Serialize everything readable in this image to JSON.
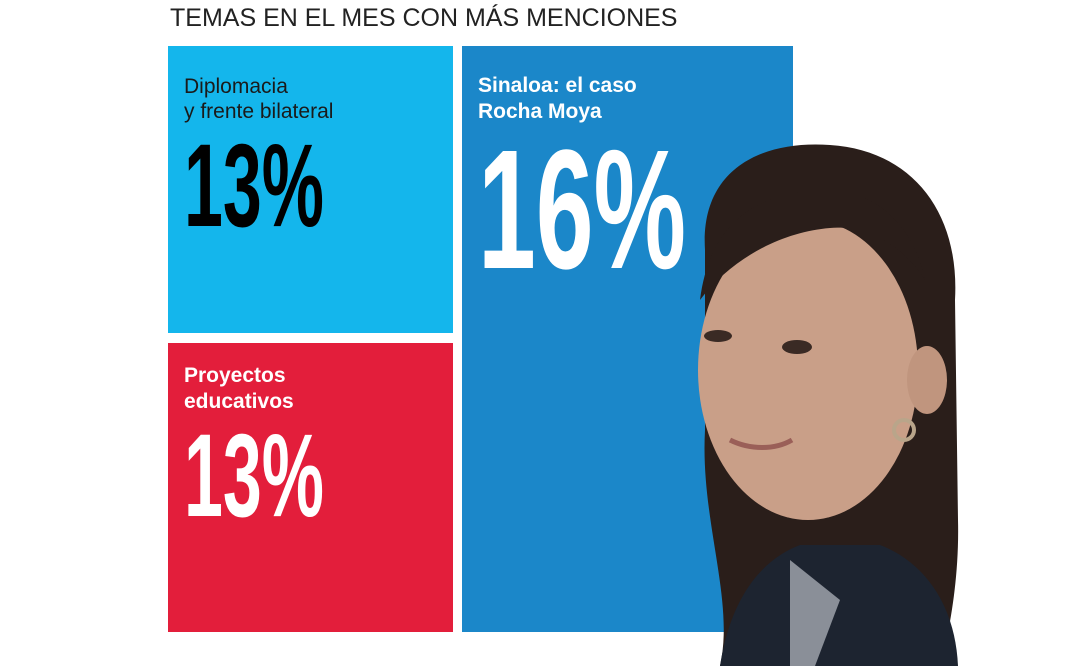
{
  "header": {
    "title": "TEMAS EN EL MES CON MÁS MENCIONES"
  },
  "tiles": [
    {
      "label_lines": [
        "Diplomacia",
        "y frente bilateral"
      ],
      "value": "13%"
    },
    {
      "label_lines": [
        "Proyectos",
        "educativos"
      ],
      "value": "13%"
    },
    {
      "label_lines": [
        "Sinaloa: el caso",
        "Rocha Moya"
      ],
      "value": "16%"
    }
  ]
}
